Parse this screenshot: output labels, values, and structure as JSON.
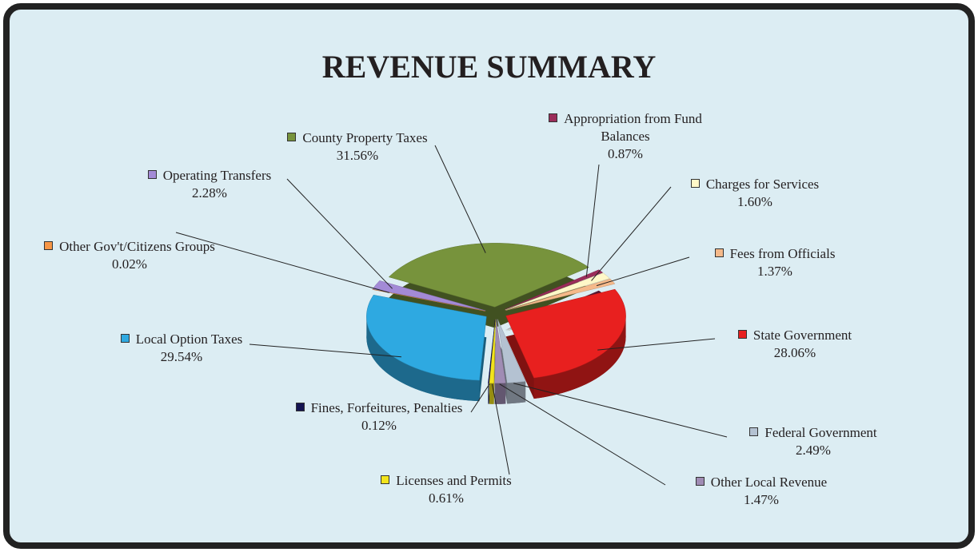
{
  "chart_data": {
    "type": "pie",
    "title": "REVENUE SUMMARY",
    "categories": [
      "County Property Taxes",
      "Appropriation from Fund Balances",
      "Charges for Services",
      "Fees from Officials",
      "State Government",
      "Federal Government",
      "Other Local Revenue",
      "Licenses and Permits",
      "Fines, Forfeitures, Penalties",
      "Local Option Taxes",
      "Other Gov't/Citizens Groups",
      "Operating Transfers"
    ],
    "values": [
      31.56,
      0.87,
      1.6,
      1.37,
      28.06,
      2.49,
      1.47,
      0.61,
      0.12,
      29.54,
      0.02,
      2.28
    ],
    "value_labels": [
      "31.56%",
      "0.87%",
      "1.60%",
      "1.37%",
      "28.06%",
      "2.49%",
      "1.47%",
      "0.61%",
      "0.12%",
      "29.54%",
      "0.02%",
      "2.28%"
    ],
    "colors": [
      "#77933c",
      "#9b2d5a",
      "#fff8c8",
      "#f5b98a",
      "#e8201f",
      "#b4c2d2",
      "#a08cb4",
      "#f2e41c",
      "#141452",
      "#2ea9e1",
      "#f79646",
      "#a38ad6"
    ]
  }
}
